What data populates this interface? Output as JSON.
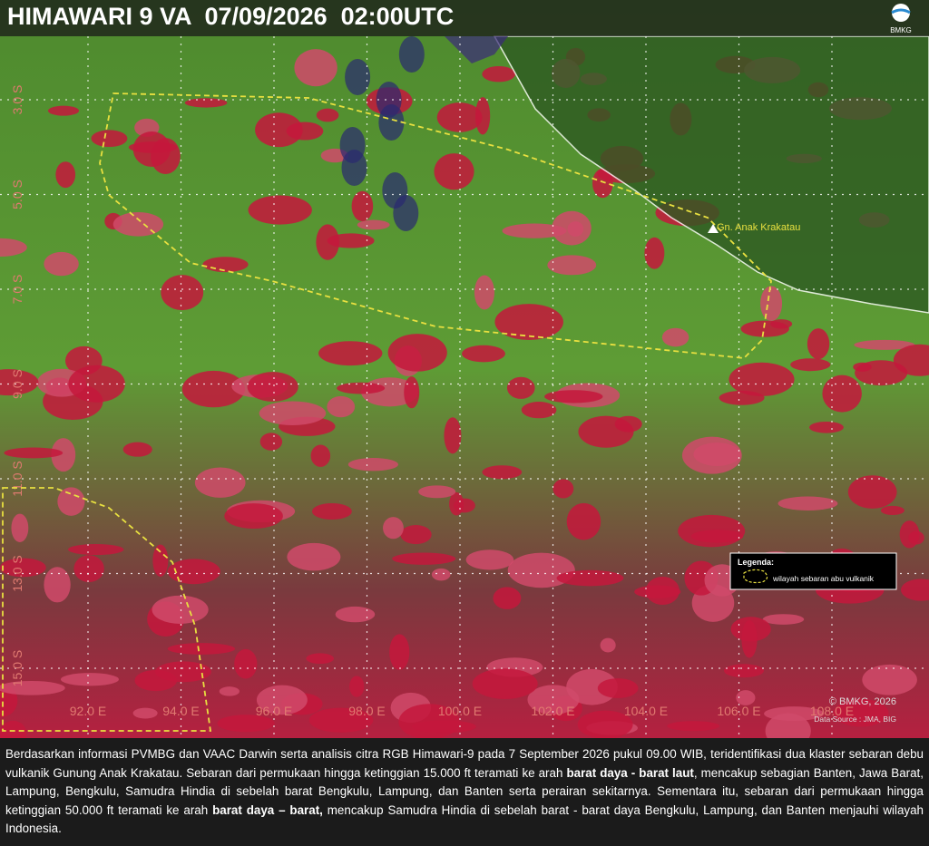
{
  "header": {
    "title": "HIMAWARI 9 VA  07/09/2026  02:00UTC",
    "logo": "BMKG"
  },
  "map": {
    "lat_labels": [
      "3.0 S",
      "5.0 S",
      "7.0 S",
      "9.0 S",
      "11.0 S",
      "13.0 S",
      "15.0 S"
    ],
    "lon_labels": [
      "92.0 E",
      "94.0 E",
      "96.0 E",
      "98.0 E",
      "100.0 E",
      "102.0 E",
      "104.0 E",
      "106.0 E",
      "108.0 E"
    ],
    "volcano_label": "Gn. Anak Krakatau",
    "legend": {
      "title": "Legenda:",
      "item": "wilayah sebaran abu vulkanik"
    },
    "copyright": "© BMKG, 2026",
    "source": "Data Source : JMA, BIG"
  },
  "caption": {
    "segments": [
      {
        "text": "Berdasarkan informasi PVMBG dan VAAC Darwin serta analisis citra RGB Himawari-9 pada 7 September 2026 pukul 09.00 WIB, teridentifikasi dua klaster sebaran debu vulkanik Gunung Anak Krakatau. Sebaran dari permukaan hingga ketinggian 15.000 ft teramati ke arah ",
        "bold": false
      },
      {
        "text": "barat daya - barat laut",
        "bold": true
      },
      {
        "text": ", mencakup sebagian Banten, Jawa Barat, Lampung, Bengkulu, Samudra Hindia di sebelah barat Bengkulu, Lampung, dan Banten serta perairan sekitarnya. Sementara itu, sebaran dari permukaan hingga ketinggian 50.000 ft teramati ke arah ",
        "bold": false
      },
      {
        "text": "barat daya – barat,",
        "bold": true
      },
      {
        "text": " mencakup Samudra Hindia di sebelah barat - barat daya Bengkulu, Lampung, dan Banten menjauhi wilayah Indonesia.",
        "bold": false
      }
    ]
  }
}
